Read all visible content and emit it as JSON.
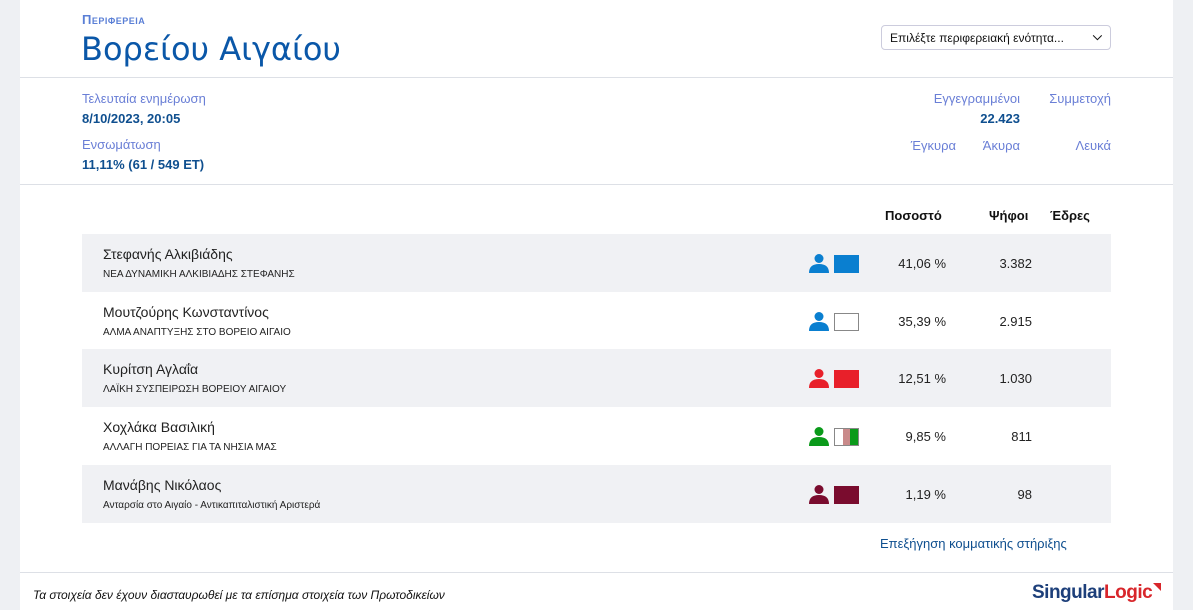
{
  "header": {
    "kicker": "Περιφερεια",
    "title": "Βορείου Αιγαίου",
    "select_placeholder": "Επιλέξτε περιφερειακή ενότητα..."
  },
  "stats": {
    "last_update_label": "Τελευταία ενημέρωση",
    "last_update_value": "8/10/2023, 20:05",
    "incorporation_label": "Ενσωμάτωση",
    "incorporation_value": "11,11% (61 / 549 ΕΤ)",
    "registered_label": "Εγγεγραμμένοι",
    "registered_value": "22.423",
    "turnout_label": "Συμμετοχή",
    "valid_label": "Έγκυρα",
    "invalid_label": "Άκυρα",
    "blank_label": "Λευκά"
  },
  "table": {
    "headers": {
      "percent": "Ποσοστό",
      "votes": "Ψήφοι",
      "seats": "Έδρες"
    },
    "rows": [
      {
        "name": "Στεφανής Αλκιβιάδης",
        "party": "ΝΕΑ ΔΥΝΑΜΙΚΗ ΑΛΚΙΒΙΑΔΗΣ ΣΤΕΦΑΝΗΣ",
        "percent": "41,06 %",
        "votes": "3.382",
        "color": "#0a7fd0",
        "swatch": [
          "#0a7fd0"
        ]
      },
      {
        "name": "Μουτζούρης Κωνσταντίνος",
        "party": "ΑΛΜΑ ΑΝΑΠΤΥΞΗΣ ΣΤΟ ΒΟΡΕΙΟ ΑΙΓΑΙΟ",
        "percent": "35,39 %",
        "votes": "2.915",
        "color": "#0a7fd0",
        "swatch": [
          "#ffffff"
        ]
      },
      {
        "name": "Κυρίτση Αγλαΐα",
        "party": "ΛΑΪΚΗ ΣΥΣΠΕΙΡΩΣΗ ΒΟΡΕΙΟΥ ΑΙΓΑΙΟΥ",
        "percent": "12,51 %",
        "votes": "1.030",
        "color": "#e8202a",
        "swatch": [
          "#e8202a"
        ]
      },
      {
        "name": "Χοχλάκα Βασιλική",
        "party": "ΑΛΛΑΓΗ ΠΟΡΕΙΑΣ ΓΙΑ ΤΑ ΝΗΣΙΑ ΜΑΣ",
        "percent": "9,85 %",
        "votes": "811",
        "color": "#0a9a1a",
        "swatch": [
          "#ffffff",
          "#c98a8a",
          "#0a9a1a"
        ]
      },
      {
        "name": "Μανάβης Νικόλαος",
        "party": "Ανταρσία στο Αιγαίο - Αντικαπιταλιστική Αριστερά",
        "percent": "1,19 %",
        "votes": "98",
        "color": "#7a0c2e",
        "swatch": [
          "#7a0c2e"
        ]
      }
    ]
  },
  "explain_link": "Επεξήγηση κομματικής στήριξης",
  "footer": {
    "disclaimer": "Τα στοιχεία δεν έχουν διασταυρωθεί με τα επίσημα στοιχεία των Πρωτοδικείων",
    "logo_a": "Singular",
    "logo_b": "Logic"
  }
}
